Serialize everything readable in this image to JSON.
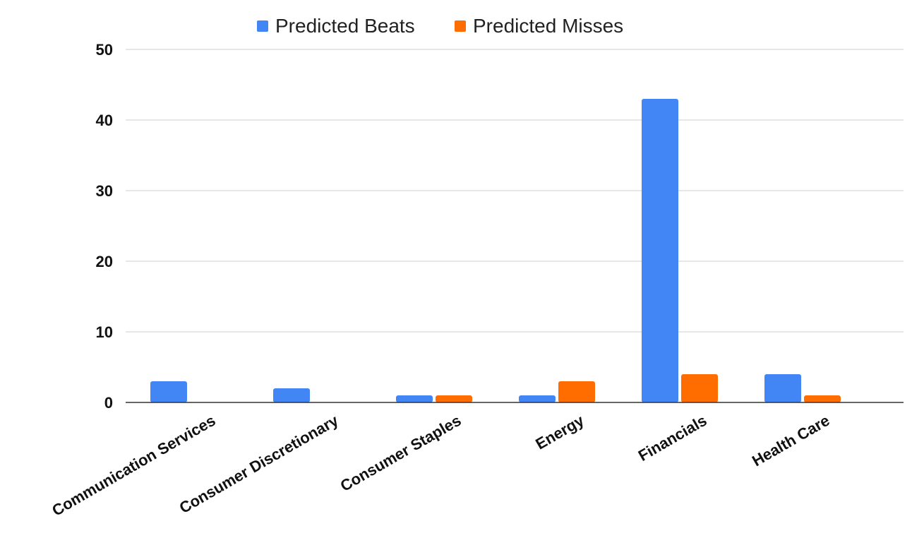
{
  "chart_data": {
    "type": "bar",
    "categories": [
      "Communication Services",
      "Consumer Discretionary",
      "Consumer Staples",
      "Energy",
      "Financials",
      "Health Care"
    ],
    "series": [
      {
        "name": "Predicted Beats",
        "color": "#4285F4",
        "values": [
          3,
          2,
          1,
          1,
          43,
          4
        ]
      },
      {
        "name": "Predicted Misses",
        "color": "#FF6D01",
        "values": [
          0,
          0,
          1,
          3,
          4,
          1
        ]
      }
    ],
    "yticks": [
      0,
      10,
      20,
      30,
      40,
      50
    ],
    "ylim": [
      0,
      50
    ],
    "grid": true,
    "legend_position": "top-center"
  }
}
